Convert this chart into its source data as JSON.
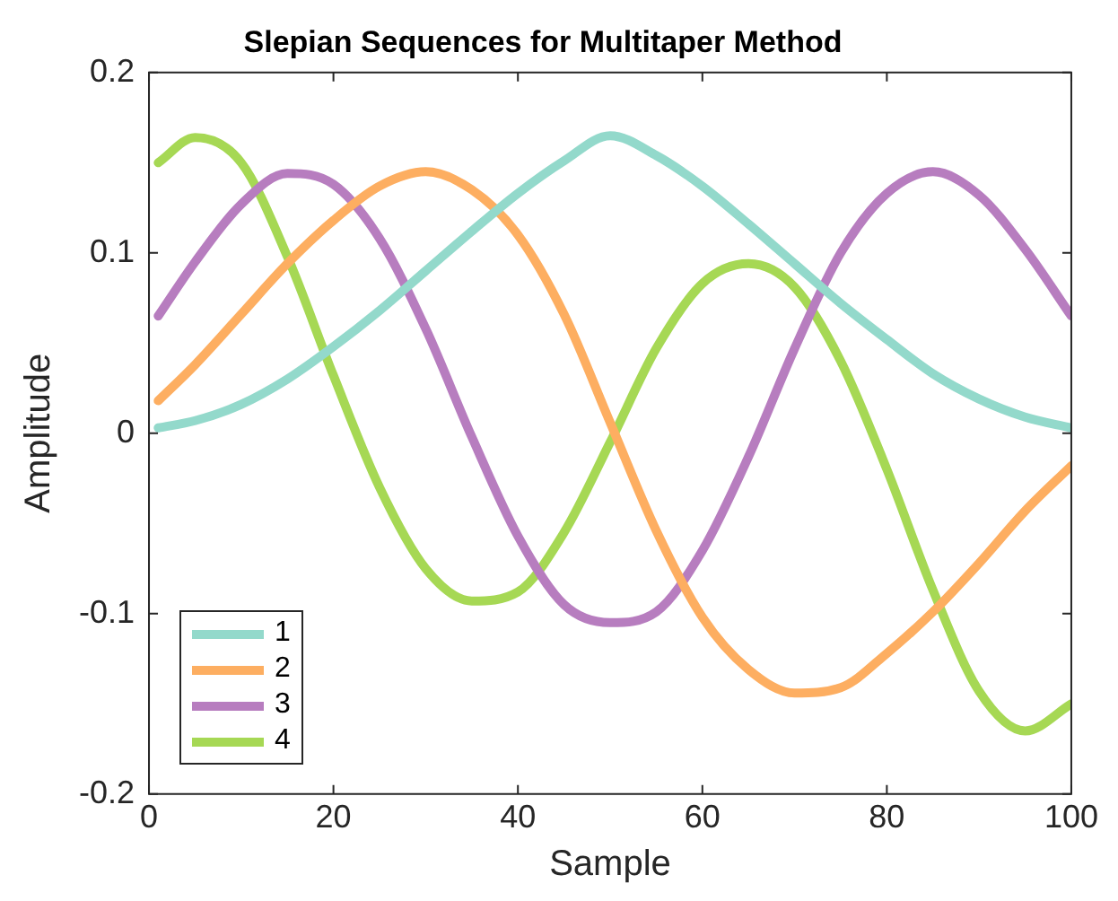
{
  "chart_data": {
    "type": "line",
    "title": "Slepian Sequences for Multitaper Method",
    "xlabel": "Sample",
    "ylabel": "Amplitude",
    "x": [
      1,
      5,
      10,
      15,
      20,
      25,
      30,
      35,
      40,
      45,
      50,
      55,
      60,
      65,
      70,
      75,
      80,
      85,
      90,
      95,
      100
    ],
    "xlim": [
      0,
      100
    ],
    "xticks": [
      0,
      20,
      40,
      60,
      80,
      100
    ],
    "ylim": [
      -0.2,
      0.2
    ],
    "yticks": [
      {
        "value": -0.2,
        "label": "-0.2"
      },
      {
        "value": -0.1,
        "label": "-0.1"
      },
      0,
      0.1,
      0.2
    ],
    "grid": false,
    "legend": "bottom left",
    "marker": "none",
    "line_style": "solid",
    "series": [
      {
        "name": "1",
        "color": "#93d9cb",
        "values": [
          0.003,
          0.007,
          0.016,
          0.03,
          0.048,
          0.068,
          0.09,
          0.112,
          0.133,
          0.151,
          0.165,
          0.154,
          0.137,
          0.116,
          0.094,
          0.072,
          0.052,
          0.033,
          0.019,
          0.009,
          0.003
        ]
      },
      {
        "name": "2",
        "color": "#fdae61",
        "values": [
          0.018,
          0.038,
          0.066,
          0.094,
          0.118,
          0.137,
          0.145,
          0.135,
          0.11,
          0.066,
          0.006,
          -0.054,
          -0.102,
          -0.131,
          -0.144,
          -0.141,
          -0.122,
          -0.099,
          -0.072,
          -0.043,
          -0.018
        ]
      },
      {
        "name": "3",
        "color": "#b77dbf",
        "values": [
          0.065,
          0.095,
          0.127,
          0.144,
          0.138,
          0.108,
          0.058,
          -0.002,
          -0.057,
          -0.095,
          -0.105,
          -0.099,
          -0.065,
          -0.013,
          0.047,
          0.1,
          0.133,
          0.145,
          0.132,
          0.102,
          0.065
        ]
      },
      {
        "name": "4",
        "color": "#a6d854",
        "values": [
          0.15,
          0.164,
          0.15,
          0.098,
          0.032,
          -0.03,
          -0.075,
          -0.093,
          -0.088,
          -0.055,
          -0.005,
          0.047,
          0.083,
          0.094,
          0.081,
          0.04,
          -0.02,
          -0.087,
          -0.143,
          -0.165,
          -0.15
        ]
      }
    ]
  }
}
